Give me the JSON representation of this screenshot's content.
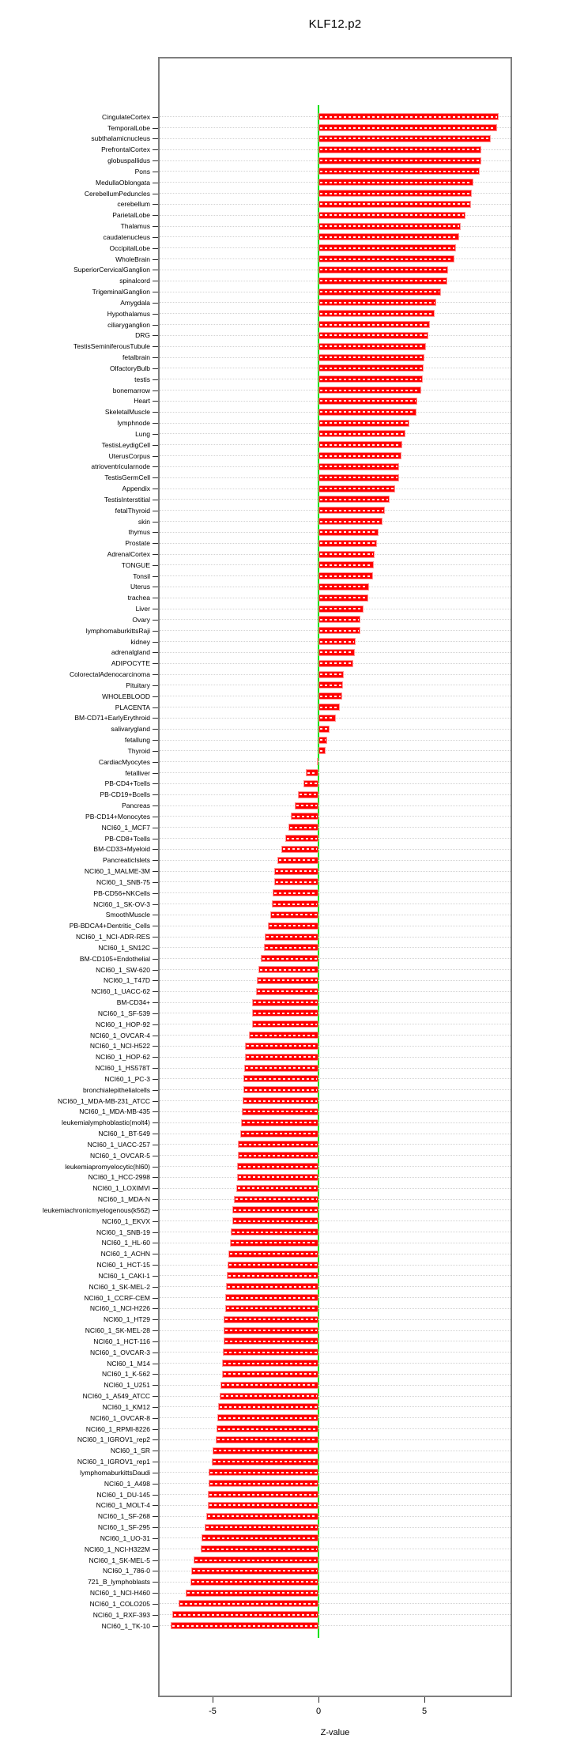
{
  "chart_data": {
    "type": "bar",
    "orientation": "horizontal",
    "title": "KLF12.p2",
    "xlabel": "Z-value",
    "xticks": [
      -5,
      0,
      5
    ],
    "xlim": [
      -7.6,
      9.1
    ],
    "grid": "dotted horizontal line per category",
    "legend": "none",
    "bar_color": "#FF0000",
    "bar_border_color": "#FF9595",
    "zero_line_color": "#00E100",
    "categories": [
      "CingulateCortex",
      "TemporalLobe",
      "subthalamicnucleus",
      "PrefrontalCortex",
      "globuspallidus",
      "Pons",
      "MedullaOblongata",
      "CerebellumPeduncles",
      "cerebellum",
      "ParietalLobe",
      "Thalamus",
      "caudatenucleus",
      "OccipitalLobe",
      "WholeBrain",
      "SuperiorCervicalGanglion",
      "spinalcord",
      "TrigeminalGanglion",
      "Amygdala",
      "Hypothalamus",
      "ciliaryganglion",
      "DRG",
      "TestisSeminiferousTubule",
      "fetalbrain",
      "OlfactoryBulb",
      "testis",
      "bonemarrow",
      "Heart",
      "SkeletalMuscle",
      "lymphnode",
      "Lung",
      "TestisLeydigCell",
      "UterusCorpus",
      "atrioventricularnode",
      "TestisGermCell",
      "Appendix",
      "TestisInterstitial",
      "fetalThyroid",
      "skin",
      "thymus",
      "Prostate",
      "AdrenalCortex",
      "TONGUE",
      "Tonsil",
      "Uterus",
      "trachea",
      "Liver",
      "Ovary",
      "lymphomaburkittsRaji",
      "kidney",
      "adrenalgland",
      "ADIPOCYTE",
      "ColorectalAdenocarcinoma",
      "Pituitary",
      "WHOLEBLOOD",
      "PLACENTA",
      "BM-CD71+EarlyErythroid",
      "salivarygland",
      "fetallung",
      "Thyroid",
      "CardiacMyocytes",
      "fetalliver",
      "PB-CD4+Tcells",
      "PB-CD19+Bcells",
      "Pancreas",
      "PB-CD14+Monocytes",
      "NCI60_1_MCF7",
      "PB-CD8+Tcells",
      "BM-CD33+Myeloid",
      "PancreaticIslets",
      "NCI60_1_MALME-3M",
      "NCI60_1_SNB-75",
      "PB-CD56+NKCells",
      "NCI60_1_SK-OV-3",
      "SmoothMuscle",
      "PB-BDCA4+Dentritic_Cells",
      "NCI60_1_NCI-ADR-RES",
      "NCI60_1_SN12C",
      "BM-CD105+Endothelial",
      "NCI60_1_SW-620",
      "NCI60_1_T47D",
      "NCI60_1_UACC-62",
      "BM-CD34+",
      "NCI60_1_SF-539",
      "NCI60_1_HOP-92",
      "NCI60_1_OVCAR-4",
      "NCI60_1_NCI-H522",
      "NCI60_1_HOP-62",
      "NCI60_1_HS578T",
      "NCI60_1_PC-3",
      "bronchialepithelialcells",
      "NCI60_1_MDA-MB-231_ATCC",
      "NCI60_1_MDA-MB-435",
      "leukemialymphoblastic(molt4)",
      "NCI60_1_BT-549",
      "NCI60_1_UACC-257",
      "NCI60_1_OVCAR-5",
      "leukemiapromyelocytic(hl60)",
      "NCI60_1_HCC-2998",
      "NCI60_1_LOXIMVI",
      "NCI60_1_MDA-N",
      "leukemiachronicmyelogenous(k562)",
      "NCI60_1_EKVX",
      "NCI60_1_SNB-19",
      "NCI60_1_HL-60",
      "NCI60_1_ACHN",
      "NCI60_1_HCT-15",
      "NCI60_1_CAKI-1",
      "NCI60_1_SK-MEL-2",
      "NCI60_1_CCRF-CEM",
      "NCI60_1_NCI-H226",
      "NCI60_1_HT29",
      "NCI60_1_SK-MEL-28",
      "NCI60_1_HCT-116",
      "NCI60_1_OVCAR-3",
      "NCI60_1_M14",
      "NCI60_1_K-562",
      "NCI60_1_U251",
      "NCI60_1_A549_ATCC",
      "NCI60_1_KM12",
      "NCI60_1_OVCAR-8",
      "NCI60_1_RPMI-8226",
      "NCI60_1_IGROV1_rep2",
      "NCI60_1_SR",
      "NCI60_1_IGROV1_rep1",
      "lymphomaburkittsDaudi",
      "NCI60_1_A498",
      "NCI60_1_DU-145",
      "NCI60_1_MOLT-4",
      "NCI60_1_SF-268",
      "NCI60_1_SF-295",
      "NCI60_1_UO-31",
      "NCI60_1_NCI-H322M",
      "NCI60_1_SK-MEL-5",
      "NCI60_1_786-0",
      "721_B_lymphoblasts",
      "NCI60_1_NCI-H460",
      "NCI60_1_COLO205",
      "NCI60_1_RXF-393",
      "NCI60_1_TK-10"
    ],
    "values": [
      8.5,
      8.45,
      8.13,
      7.7,
      7.69,
      7.63,
      7.31,
      7.23,
      7.2,
      6.95,
      6.73,
      6.64,
      6.48,
      6.43,
      6.11,
      6.08,
      5.78,
      5.57,
      5.49,
      5.27,
      5.18,
      5.06,
      5.0,
      4.96,
      4.92,
      4.86,
      4.67,
      4.63,
      4.28,
      4.12,
      3.95,
      3.92,
      3.82,
      3.81,
      3.61,
      3.35,
      3.15,
      3.02,
      2.82,
      2.75,
      2.64,
      2.62,
      2.58,
      2.37,
      2.34,
      2.11,
      1.97,
      1.96,
      1.76,
      1.71,
      1.66,
      1.18,
      1.16,
      1.11,
      0.99,
      0.82,
      0.51,
      0.41,
      0.35,
      -0.07,
      -0.59,
      -0.7,
      -0.96,
      -1.12,
      -1.32,
      -1.42,
      -1.58,
      -1.75,
      -1.95,
      -2.08,
      -2.1,
      -2.18,
      -2.21,
      -2.26,
      -2.4,
      -2.55,
      -2.57,
      -2.74,
      -2.84,
      -2.92,
      -2.95,
      -3.13,
      -3.14,
      -3.15,
      -3.3,
      -3.46,
      -3.48,
      -3.51,
      -3.53,
      -3.55,
      -3.57,
      -3.61,
      -3.65,
      -3.7,
      -3.79,
      -3.82,
      -3.83,
      -3.86,
      -3.88,
      -3.98,
      -4.07,
      -4.08,
      -4.13,
      -4.17,
      -4.26,
      -4.28,
      -4.33,
      -4.35,
      -4.39,
      -4.41,
      -4.48,
      -4.49,
      -4.49,
      -4.5,
      -4.54,
      -4.55,
      -4.62,
      -4.67,
      -4.73,
      -4.77,
      -4.83,
      -4.85,
      -5.0,
      -5.02,
      -5.17,
      -5.19,
      -5.23,
      -5.24,
      -5.31,
      -5.38,
      -5.54,
      -5.56,
      -5.89,
      -6.0,
      -6.06,
      -6.26,
      -6.59,
      -6.89,
      -6.96
    ]
  }
}
